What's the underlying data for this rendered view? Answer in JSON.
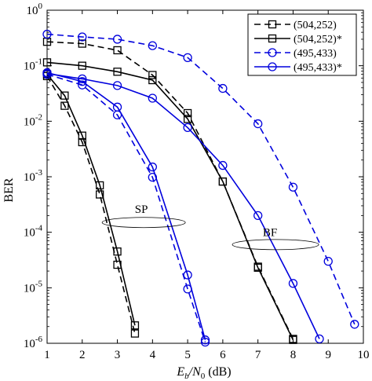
{
  "chart_data": {
    "type": "line",
    "title": "",
    "xlabel_parts": [
      "E",
      "b",
      "/N",
      "0",
      " (dB)"
    ],
    "ylabel": "BER",
    "xlim": [
      1,
      10
    ],
    "ylim_log10": [
      -6,
      0
    ],
    "yscale": "log",
    "xticks": [
      "1",
      "2",
      "3",
      "4",
      "5",
      "6",
      "7",
      "8",
      "9",
      "10"
    ],
    "yticks": [
      {
        "base": "10",
        "exp": "0"
      },
      {
        "base": "10",
        "exp": "-1"
      },
      {
        "base": "10",
        "exp": "-2"
      },
      {
        "base": "10",
        "exp": "-3"
      },
      {
        "base": "10",
        "exp": "-4"
      },
      {
        "base": "10",
        "exp": "-5"
      },
      {
        "base": "10",
        "exp": "-6"
      }
    ],
    "legend_position": "top-right",
    "series": [
      {
        "name": "(504,252)",
        "color": "#000000",
        "dash": "dashed",
        "marker": "square",
        "x": [
          1,
          2,
          3,
          4,
          5,
          6,
          7,
          8
        ],
        "y": [
          0.27,
          0.25,
          0.19,
          0.068,
          0.014,
          0.00082,
          2.4e-05,
          1.2e-06
        ]
      },
      {
        "name": "(504,252)*",
        "color": "#000000",
        "dash": "solid",
        "marker": "square",
        "x": [
          1,
          2,
          3,
          4,
          5,
          6,
          7,
          8
        ],
        "y": [
          0.115,
          0.1,
          0.078,
          0.055,
          0.011,
          0.00082,
          2.3e-05,
          1.15e-06
        ]
      },
      {
        "name": "(495,433)",
        "color": "#0000dd",
        "dash": "dashed",
        "marker": "circle",
        "x": [
          1,
          2,
          3,
          4,
          5,
          6,
          7,
          8,
          9,
          9.75
        ],
        "y": [
          0.37,
          0.33,
          0.3,
          0.23,
          0.14,
          0.039,
          0.009,
          0.00065,
          3e-05,
          2.2e-06
        ]
      },
      {
        "name": "(495,433)*",
        "color": "#0000dd",
        "dash": "solid",
        "marker": "circle",
        "x": [
          1,
          2,
          3,
          4,
          5,
          6,
          7,
          8,
          8.75
        ],
        "y": [
          0.072,
          0.058,
          0.044,
          0.026,
          0.0077,
          0.0016,
          0.0002,
          1.2e-05,
          1.2e-06
        ]
      },
      {
        "name": "",
        "color": "#000000",
        "dash": "dashed",
        "marker": "square",
        "x": [
          1,
          1.5,
          2,
          2.5,
          3,
          3.5
        ],
        "y": [
          0.065,
          0.019,
          0.0042,
          0.00048,
          2.6e-05,
          1.5e-06
        ]
      },
      {
        "name": "",
        "color": "#000000",
        "dash": "solid",
        "marker": "square",
        "x": [
          1,
          1.5,
          2,
          2.5,
          3,
          3.5
        ],
        "y": [
          0.07,
          0.029,
          0.0055,
          0.0007,
          4.5e-05,
          2.1e-06
        ]
      },
      {
        "name": "",
        "color": "#0000dd",
        "dash": "dashed",
        "marker": "circle",
        "x": [
          1,
          2,
          3,
          4,
          5,
          5.5
        ],
        "y": [
          0.07,
          0.045,
          0.013,
          0.00098,
          9.5e-06,
          1.05e-06
        ]
      },
      {
        "name": "",
        "color": "#0000dd",
        "dash": "solid",
        "marker": "circle",
        "x": [
          1,
          2,
          3,
          4,
          5,
          5.5
        ],
        "y": [
          0.075,
          0.052,
          0.018,
          0.0015,
          1.7e-05,
          1.15e-06
        ]
      }
    ],
    "annotations": [
      {
        "text": "SP",
        "ellipse_center": {
          "x": 3.75,
          "y": 0.00015
        }
      },
      {
        "text": "BF",
        "ellipse_center": {
          "x": 7.5,
          "y": 6e-05
        }
      }
    ]
  }
}
